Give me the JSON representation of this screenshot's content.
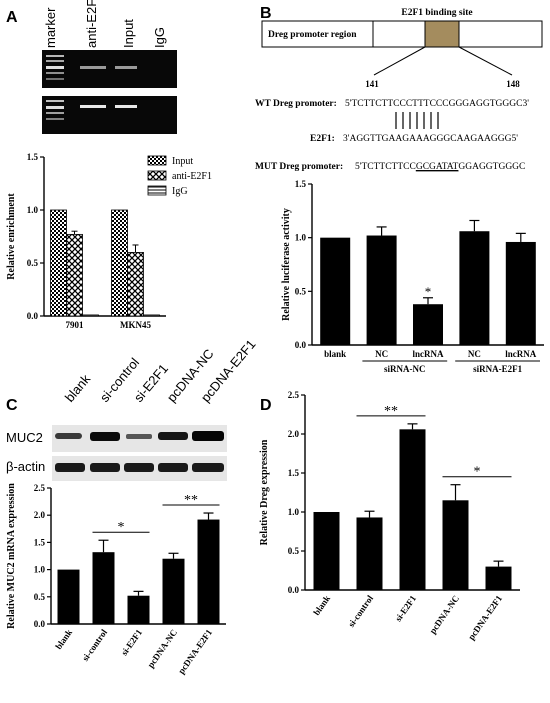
{
  "panels": {
    "A": {
      "letter": "A",
      "gel_lanes": [
        "marker",
        "anti-E2F1",
        "Input",
        "IgG"
      ],
      "chart_data": {
        "type": "bar",
        "categories": [
          "7901",
          "MKN45"
        ],
        "series": [
          {
            "name": "Input",
            "values": [
              1.0,
              1.0
            ],
            "errors": [
              0,
              0
            ]
          },
          {
            "name": "anti-E2F1",
            "values": [
              0.77,
              0.6
            ],
            "errors": [
              0.03,
              0.07
            ]
          },
          {
            "name": "IgG",
            "values": [
              0.01,
              0.01
            ],
            "errors": [
              0,
              0
            ]
          }
        ],
        "ylabel": "Relative enrichment",
        "ylim": [
          0,
          1.5
        ],
        "yticks": [
          "0.0",
          "0.5",
          "1.0",
          "1.5"
        ],
        "legend": "top-right"
      }
    },
    "B": {
      "letter": "B",
      "binding_site_label": "E2F1 binding site",
      "promoter_region_label": "Dreg promoter region",
      "pos_start": "141",
      "pos_end": "148",
      "wt_label": "WT Dreg promoter:",
      "wt_seq": "5'TCTTCTTCCCTTTCCCGGGAGGTGGGC3'",
      "e2f1_label": "E2F1:",
      "e2f1_seq": "3'AGGTTGAAGAAAGGGCAAGAAGGG5'",
      "mut_label": "MUT Dreg promoter:",
      "mut_seq_pre": "5'TCTTCTTCC",
      "mut_seq_mut": "GCGATAT",
      "mut_seq_post": "GGAGGTGGGC",
      "chart_data": {
        "type": "bar",
        "categories": [
          "blank",
          "NC",
          "lncRNA",
          "NC",
          "lncRNA"
        ],
        "groups": [
          {
            "label": "siRNA-NC",
            "categories": [
              "NC",
              "lncRNA"
            ]
          },
          {
            "label": "siRNA-E2F1",
            "categories": [
              "NC",
              "lncRNA"
            ]
          }
        ],
        "values": [
          1.0,
          1.02,
          0.38,
          1.06,
          0.96
        ],
        "errors": [
          0,
          0.08,
          0.06,
          0.1,
          0.08
        ],
        "significance": [
          {
            "index": 2,
            "label": "*"
          }
        ],
        "ylabel": "Relative luciferase activity",
        "ylim": [
          0,
          1.5
        ],
        "yticks": [
          "0.0",
          "0.5",
          "1.0",
          "1.5"
        ]
      }
    },
    "C": {
      "letter": "C",
      "lanes": [
        "blank",
        "si-control",
        "si-E2F1",
        "pcDNA-NC",
        "pcDNA-E2F1"
      ],
      "blot_labels": [
        "MUC2",
        "β-actin"
      ],
      "chart_data": {
        "type": "bar",
        "categories": [
          "blank",
          "si-control",
          "si-E2F1",
          "pcDNA-NC",
          "pcDNA-E2F1"
        ],
        "values": [
          1.0,
          1.32,
          0.52,
          1.2,
          1.92
        ],
        "errors": [
          0,
          0.22,
          0.08,
          0.1,
          0.12
        ],
        "significance": [
          {
            "from": 1,
            "to": 2,
            "label": "*"
          },
          {
            "from": 3,
            "to": 4,
            "label": "**"
          }
        ],
        "ylabel": "Relative MUC2 mRNA expression",
        "ylim": [
          0,
          2.5
        ],
        "yticks": [
          "0.0",
          "0.5",
          "1.0",
          "1.5",
          "2.0",
          "2.5"
        ]
      }
    },
    "D": {
      "letter": "D",
      "chart_data": {
        "type": "bar",
        "categories": [
          "blank",
          "si-control",
          "si-E2F1",
          "pcDNA-NC",
          "pcDNA-E2F1"
        ],
        "values": [
          1.0,
          0.93,
          2.06,
          1.15,
          0.3
        ],
        "errors": [
          0,
          0.08,
          0.07,
          0.2,
          0.07
        ],
        "significance": [
          {
            "from": 1,
            "to": 2,
            "label": "**"
          },
          {
            "from": 3,
            "to": 4,
            "label": "*"
          }
        ],
        "ylabel": "Relative Dreg expression",
        "ylim": [
          0,
          2.5
        ],
        "yticks": [
          "0.0",
          "0.5",
          "1.0",
          "1.5",
          "2.0",
          "2.5"
        ]
      }
    }
  }
}
